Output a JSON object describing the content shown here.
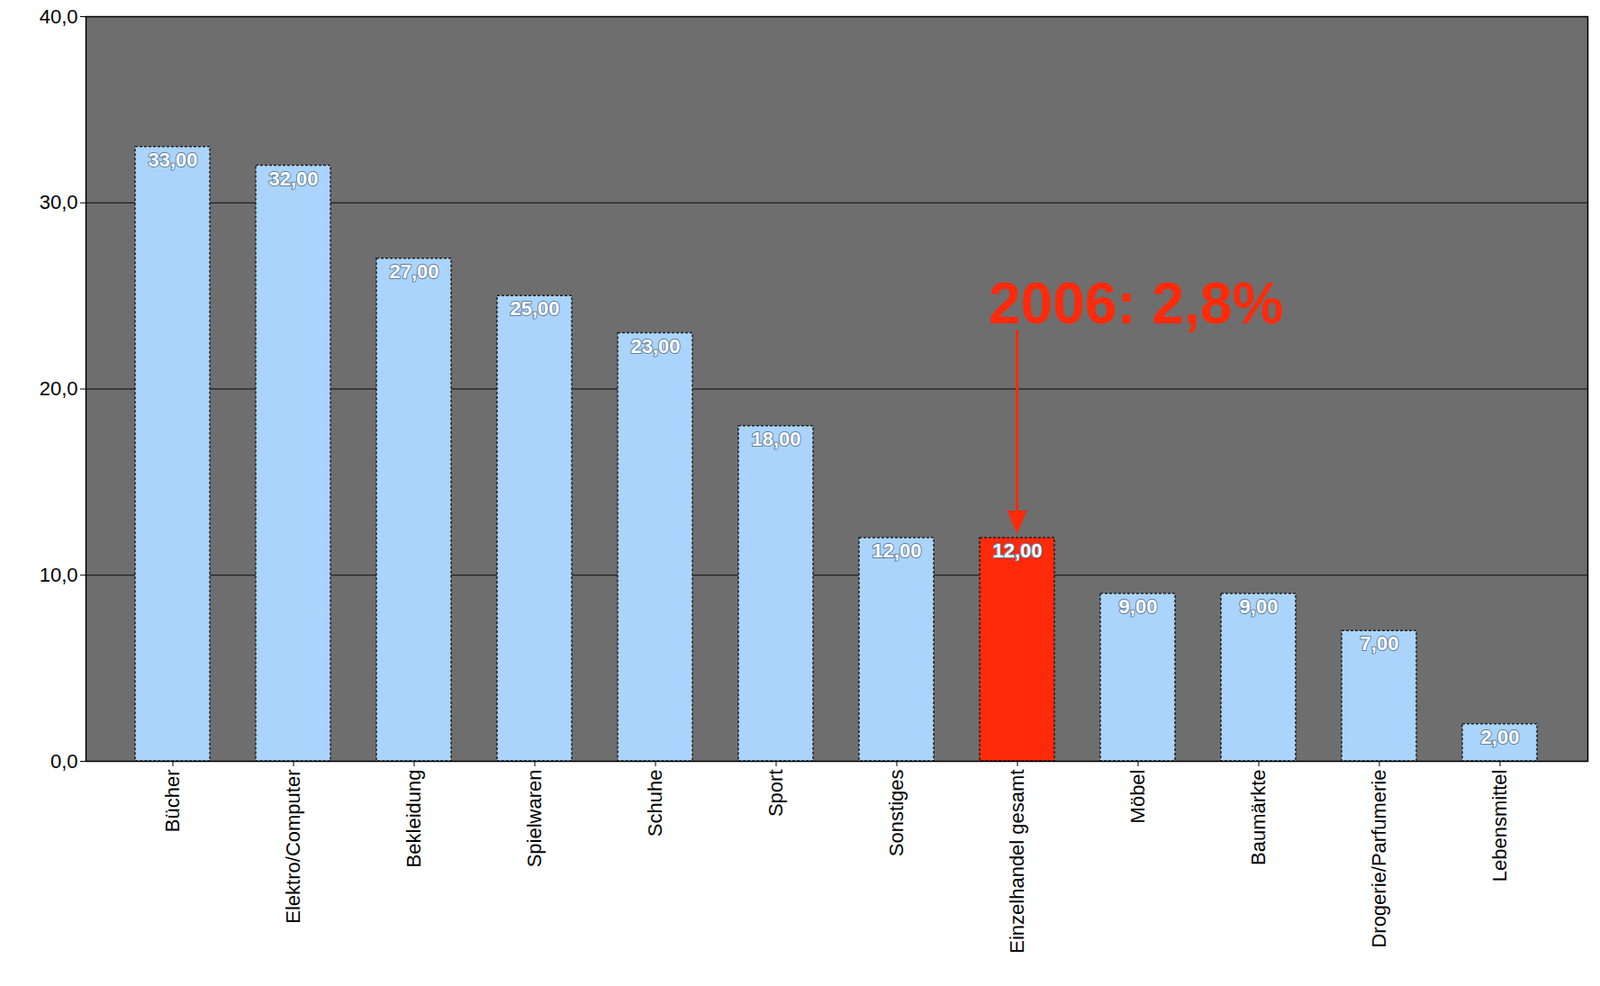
{
  "chart_data": {
    "type": "bar",
    "categories": [
      "Bücher",
      "Elektro/Computer",
      "Bekleidung",
      "Spielwaren",
      "Schuhe",
      "Sport",
      "Sonstiges",
      "Einzelhandel gesamt",
      "Möbel",
      "Baumärkte",
      "Drogerie/Parfumerie",
      "Lebensmittel"
    ],
    "values": [
      33,
      32,
      27,
      25,
      23,
      18,
      12,
      12,
      9,
      9,
      7,
      2
    ],
    "value_labels": [
      "33,00",
      "32,00",
      "27,00",
      "25,00",
      "23,00",
      "18,00",
      "12,00",
      "12,00",
      "9,00",
      "9,00",
      "7,00",
      "2,00"
    ],
    "colors": [
      "#aad4fb",
      "#aad4fb",
      "#aad4fb",
      "#aad4fb",
      "#aad4fb",
      "#aad4fb",
      "#aad4fb",
      "#ff2a0a",
      "#aad4fb",
      "#aad4fb",
      "#aad4fb",
      "#aad4fb"
    ],
    "data_labels": true,
    "ylim": [
      0,
      40
    ],
    "yticks": [
      {
        "value": 0,
        "label": "0,0"
      },
      {
        "value": 10,
        "label": "10,0"
      },
      {
        "value": 20,
        "label": "20,0"
      },
      {
        "value": 30,
        "label": "30,0"
      },
      {
        "value": 40,
        "label": "40,0"
      }
    ],
    "grid": true,
    "annotation": {
      "text": "2006: 2,8%",
      "category": "Einzelhandel gesamt"
    }
  }
}
